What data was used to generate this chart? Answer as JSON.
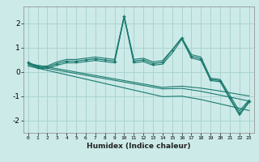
{
  "xlabel": "Humidex (Indice chaleur)",
  "background_color": "#cceae8",
  "grid_color": "#aad4d0",
  "line_color": "#1a7a6e",
  "x": [
    0,
    1,
    2,
    3,
    4,
    5,
    6,
    7,
    8,
    9,
    10,
    11,
    12,
    13,
    14,
    15,
    16,
    17,
    18,
    19,
    20,
    21,
    22,
    23
  ],
  "y_main": [
    0.4,
    0.2,
    0.2,
    0.35,
    0.45,
    0.45,
    0.5,
    0.55,
    0.5,
    0.45,
    2.3,
    0.45,
    0.5,
    0.35,
    0.4,
    0.9,
    1.4,
    0.65,
    0.55,
    -0.3,
    -0.35,
    -1.05,
    -1.7,
    -1.2
  ],
  "y_upper": [
    0.4,
    0.25,
    0.25,
    0.42,
    0.52,
    0.52,
    0.57,
    0.62,
    0.57,
    0.52,
    2.3,
    0.52,
    0.57,
    0.42,
    0.47,
    0.92,
    1.42,
    0.72,
    0.62,
    -0.25,
    -0.3,
    -0.95,
    -1.6,
    -1.15
  ],
  "y_lower1": [
    0.35,
    0.15,
    0.15,
    0.28,
    0.38,
    0.38,
    0.43,
    0.48,
    0.43,
    0.38,
    2.25,
    0.38,
    0.43,
    0.28,
    0.33,
    0.78,
    1.35,
    0.58,
    0.48,
    -0.35,
    -0.4,
    -1.1,
    -1.78,
    -1.25
  ],
  "y_trend1": [
    0.35,
    0.28,
    0.21,
    0.14,
    0.07,
    0.0,
    -0.07,
    -0.14,
    -0.21,
    -0.28,
    -0.35,
    -0.42,
    -0.49,
    -0.56,
    -0.63,
    -0.6,
    -0.58,
    -0.62,
    -0.66,
    -0.72,
    -0.78,
    -0.85,
    -0.92,
    -0.98
  ],
  "y_trend2": [
    0.3,
    0.22,
    0.15,
    0.08,
    0.01,
    -0.06,
    -0.13,
    -0.2,
    -0.27,
    -0.34,
    -0.41,
    -0.48,
    -0.55,
    -0.62,
    -0.69,
    -0.68,
    -0.67,
    -0.73,
    -0.79,
    -0.87,
    -0.95,
    -1.03,
    -1.11,
    -1.19
  ],
  "y_trend3": [
    0.25,
    0.16,
    0.07,
    -0.02,
    -0.11,
    -0.2,
    -0.29,
    -0.38,
    -0.47,
    -0.56,
    -0.65,
    -0.74,
    -0.83,
    -0.92,
    -1.01,
    -1.0,
    -0.99,
    -1.06,
    -1.13,
    -1.22,
    -1.31,
    -1.4,
    -1.49,
    -1.58
  ],
  "ylim": [
    -2.5,
    2.7
  ],
  "xlim": [
    -0.5,
    23.5
  ],
  "yticks": [
    -2,
    -1,
    0,
    1,
    2
  ]
}
